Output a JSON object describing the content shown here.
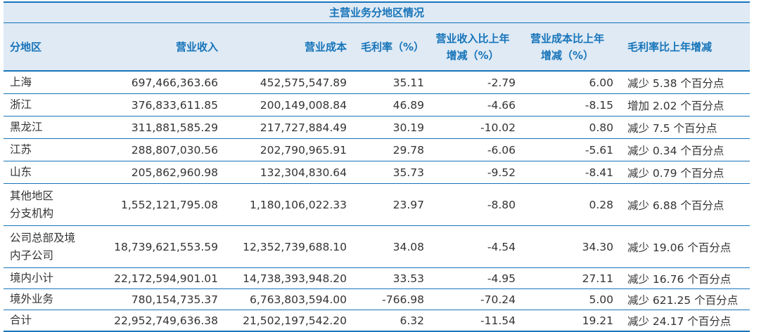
{
  "table": {
    "title": "主营业务分地区情况",
    "headers": [
      "分地区",
      "营业收入",
      "营业成本",
      "毛利率（%）",
      "营业收入比上年\n增减（%）",
      "营业成本比上年\n增减（%）",
      "毛利率比上年增减"
    ],
    "rows": [
      [
        "上海",
        "697,466,363.66",
        "452,575,547.89",
        "35.11",
        "-2.79",
        "6.00",
        "减少 5.38 个百分点"
      ],
      [
        "浙江",
        "376,833,611.85",
        "200,149,008.84",
        "46.89",
        "-4.66",
        "-8.15",
        "增加 2.02 个百分点"
      ],
      [
        "黑龙江",
        "311,881,585.29",
        "217,727,884.49",
        "30.19",
        "-10.02",
        "0.80",
        "减少 7.5 个百分点"
      ],
      [
        "江苏",
        "288,807,030.56",
        "202,790,965.91",
        "29.78",
        "-6.06",
        "-5.61",
        "减少 0.34 个百分点"
      ],
      [
        "山东",
        "205,862,960.98",
        "132,304,830.64",
        "35.73",
        "-9.52",
        "-8.41",
        "减少 0.79 个百分点"
      ],
      [
        "其他地区\n分支机构",
        "1,552,121,795.08",
        "1,180,106,022.33",
        "23.97",
        "-8.80",
        "0.28",
        "减少 6.88 个百分点"
      ],
      [
        "公司总部及境\n内子公司",
        "18,739,621,553.59",
        "12,352,739,688.10",
        "34.08",
        "-4.54",
        "34.30",
        "减少 19.06 个百分点"
      ],
      [
        "境内小计",
        "22,172,594,901.01",
        "14,738,393,948.20",
        "33.53",
        "-4.95",
        "27.11",
        "减少 16.76 个百分点"
      ],
      [
        "境外业务",
        "780,154,735.37",
        "6,763,803,594.00",
        "-766.98",
        "-70.24",
        "5.00",
        "减少 621.25 个百分点"
      ],
      [
        "合计",
        "22,952,749,636.38",
        "21,502,197,542.20",
        "6.32",
        "-11.54",
        "19.21",
        "减少 24.17 个百分点"
      ]
    ]
  },
  "colors": {
    "accent": "#1674b9",
    "header_bg": "#dfeaf5",
    "text": "#333333"
  }
}
